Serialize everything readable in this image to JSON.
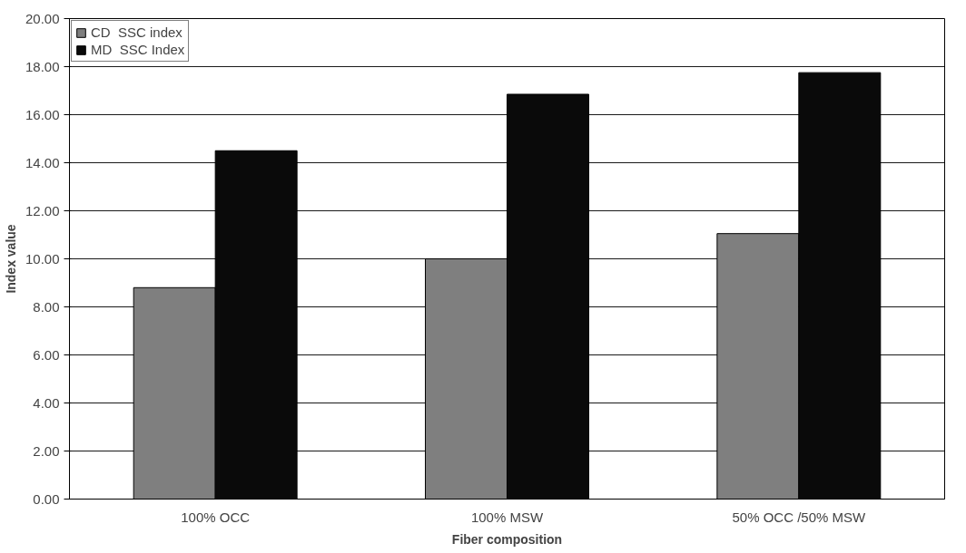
{
  "chart_data": {
    "type": "bar",
    "xlabel": "Fiber composition",
    "ylabel": "Index value",
    "categories": [
      "100% OCC",
      "100% MSW",
      "50% OCC /50% MSW"
    ],
    "series": [
      {
        "name": "CD  SSC index",
        "color": "#7f7f7f",
        "values": [
          8.8,
          10.0,
          11.05
        ]
      },
      {
        "name": "MD  SSC Index",
        "color": "#0a0a0a",
        "values": [
          14.5,
          16.85,
          17.75
        ]
      }
    ],
    "ylim": [
      0,
      20
    ],
    "yticks": [
      {
        "value": 0,
        "label": "0.00"
      },
      {
        "value": 2,
        "label": "2.00"
      },
      {
        "value": 4,
        "label": "4.00"
      },
      {
        "value": 6,
        "label": "6.00"
      },
      {
        "value": 8,
        "label": "8.00"
      },
      {
        "value": 10,
        "label": "10.00"
      },
      {
        "value": 12,
        "label": "12.00"
      },
      {
        "value": 14,
        "label": "14.00"
      },
      {
        "value": 16,
        "label": "16.00"
      },
      {
        "value": 18,
        "label": "18.00"
      },
      {
        "value": 20,
        "label": "20.00"
      }
    ],
    "grid": "y",
    "legend": "top left"
  }
}
